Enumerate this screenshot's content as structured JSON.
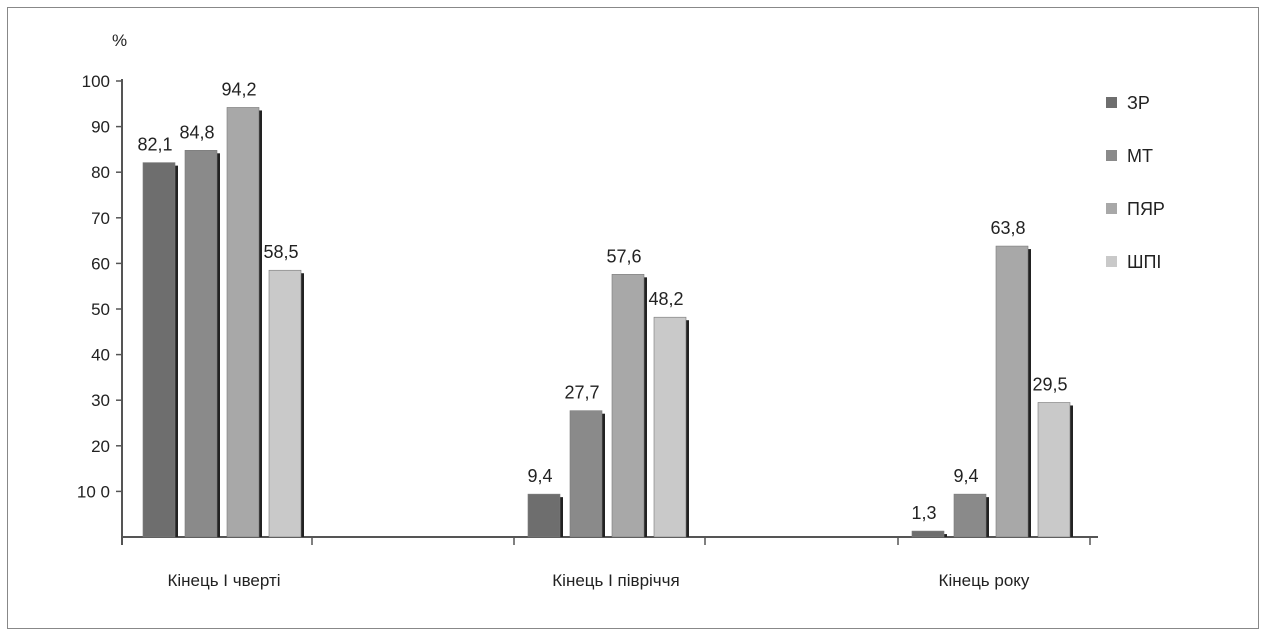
{
  "chart_data": {
    "type": "bar",
    "ylabel": "%",
    "ylim": [
      0,
      100
    ],
    "yticks": [
      {
        "value": 100,
        "label": "100"
      },
      {
        "value": 90,
        "label": "90"
      },
      {
        "value": 80,
        "label": "80"
      },
      {
        "value": 70,
        "label": "70"
      },
      {
        "value": 60,
        "label": "60"
      },
      {
        "value": 50,
        "label": "50"
      },
      {
        "value": 40,
        "label": "40"
      },
      {
        "value": 30,
        "label": "30"
      },
      {
        "value": 20,
        "label": "20"
      },
      {
        "value": 10,
        "label": "10 0"
      }
    ],
    "categories": [
      "Кінець І чверті",
      "Кінець І півріччя",
      "Кінець року"
    ],
    "series": [
      {
        "name": "ЗР",
        "values": [
          82.1,
          9.4,
          1.3
        ],
        "labels": [
          "82,1",
          "9,4",
          "1,3"
        ],
        "color": "#6e6e6e"
      },
      {
        "name": "МТ",
        "values": [
          84.8,
          27.7,
          9.4
        ],
        "labels": [
          "84,8",
          "27,7",
          "9,4"
        ],
        "color": "#8a8a8a"
      },
      {
        "name": "ПЯР",
        "values": [
          94.2,
          57.6,
          63.8
        ],
        "labels": [
          "94,2",
          "57,6",
          "63,8"
        ],
        "color": "#a8a8a8"
      },
      {
        "name": "ШПІ",
        "values": [
          58.5,
          48.2,
          29.5
        ],
        "labels": [
          "58,5",
          "48,2",
          "29,5"
        ],
        "color": "#c9c9c9"
      }
    ],
    "legend_position": "right",
    "grid": false
  }
}
